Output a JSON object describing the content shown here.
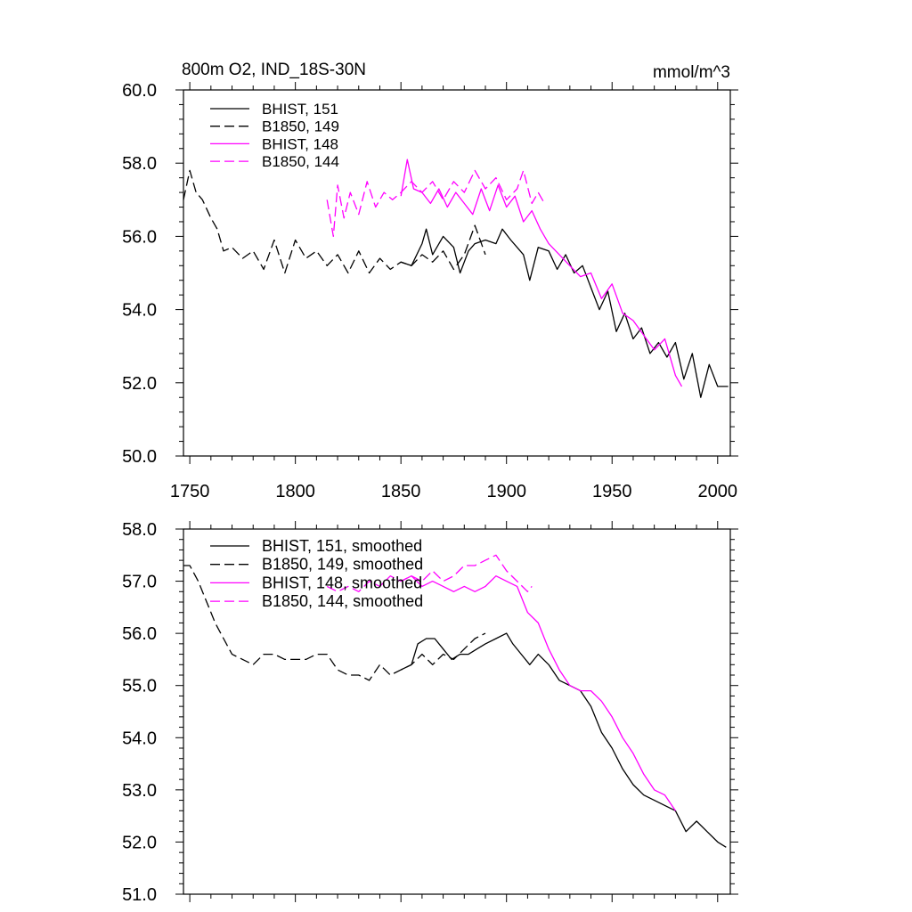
{
  "chart_data": [
    {
      "type": "line",
      "title": "800m O2, IND_18S-30N",
      "units": "mmol/m^3",
      "xlim": [
        1747,
        2006
      ],
      "ylim": [
        50,
        60
      ],
      "xticks": [
        "1750",
        "1800",
        "1850",
        "1900",
        "1950",
        "2000"
      ],
      "yticks": [
        "50.0",
        "52.0",
        "54.0",
        "56.0",
        "58.0",
        "60.0"
      ],
      "legend_position": "top-left",
      "series": [
        {
          "name": "BHIST, 151",
          "color": "#000000",
          "dash": "solid",
          "x": [
            1850,
            1855,
            1860,
            1862,
            1865,
            1870,
            1875,
            1878,
            1882,
            1885,
            1890,
            1895,
            1898,
            1902,
            1905,
            1908,
            1911,
            1915,
            1920,
            1924,
            1928,
            1932,
            1936,
            1940,
            1944,
            1948,
            1952,
            1956,
            1960,
            1964,
            1968,
            1972,
            1976,
            1980,
            1984,
            1988,
            1992,
            1996,
            2000,
            2005
          ],
          "y": [
            55.3,
            55.2,
            55.8,
            56.2,
            55.5,
            56.0,
            55.7,
            55.0,
            55.6,
            55.8,
            55.9,
            55.8,
            56.2,
            55.9,
            55.7,
            55.5,
            54.8,
            55.7,
            55.6,
            55.1,
            55.5,
            55.0,
            55.2,
            54.6,
            54.0,
            54.5,
            53.4,
            53.9,
            53.2,
            53.5,
            52.8,
            53.1,
            52.7,
            53.1,
            52.1,
            52.8,
            51.6,
            52.5,
            51.9,
            51.9
          ]
        },
        {
          "name": "B1850, 149",
          "color": "#000000",
          "dash": "dashed",
          "x": [
            1747,
            1750,
            1753,
            1756,
            1760,
            1763,
            1766,
            1770,
            1775,
            1780,
            1785,
            1790,
            1795,
            1800,
            1805,
            1810,
            1815,
            1820,
            1825,
            1830,
            1835,
            1840,
            1845,
            1850,
            1855,
            1860,
            1865,
            1870,
            1875,
            1880,
            1885,
            1890
          ],
          "y": [
            57.0,
            57.8,
            57.2,
            57.0,
            56.5,
            56.2,
            55.6,
            55.7,
            55.4,
            55.6,
            55.1,
            55.9,
            55.0,
            55.9,
            55.4,
            55.6,
            55.2,
            55.5,
            55.0,
            55.6,
            55.0,
            55.4,
            55.1,
            55.3,
            55.2,
            55.5,
            55.3,
            55.6,
            55.1,
            55.5,
            56.3,
            55.5
          ]
        },
        {
          "name": "BHIST, 148",
          "color": "#ff00ff",
          "dash": "solid",
          "x": [
            1850,
            1853,
            1856,
            1860,
            1864,
            1868,
            1872,
            1876,
            1880,
            1884,
            1888,
            1892,
            1896,
            1900,
            1904,
            1908,
            1912,
            1916,
            1920,
            1925,
            1930,
            1935,
            1940,
            1945,
            1950,
            1955,
            1960,
            1965,
            1970,
            1975,
            1980,
            1983
          ],
          "y": [
            57.1,
            58.1,
            57.3,
            57.2,
            56.9,
            57.3,
            56.8,
            57.2,
            56.9,
            56.6,
            57.3,
            56.7,
            57.4,
            56.8,
            57.1,
            56.4,
            56.7,
            56.2,
            55.8,
            55.5,
            55.2,
            54.9,
            55.0,
            54.3,
            54.7,
            53.9,
            53.7,
            53.3,
            52.9,
            53.2,
            52.2,
            51.9
          ]
        },
        {
          "name": "B1850, 144",
          "color": "#ff00ff",
          "dash": "dashed",
          "x": [
            1815,
            1818,
            1820,
            1823,
            1826,
            1830,
            1834,
            1838,
            1842,
            1846,
            1850,
            1855,
            1860,
            1865,
            1870,
            1875,
            1880,
            1885,
            1890,
            1895,
            1900,
            1905,
            1908,
            1912,
            1915,
            1918
          ],
          "y": [
            57.0,
            56.0,
            57.4,
            56.5,
            57.2,
            56.6,
            57.5,
            56.8,
            57.2,
            57.0,
            57.2,
            57.5,
            57.2,
            57.5,
            57.0,
            57.5,
            57.2,
            57.8,
            57.3,
            57.6,
            57.0,
            57.3,
            57.8,
            56.9,
            57.2,
            56.9
          ]
        }
      ]
    },
    {
      "type": "line",
      "xlim": [
        1747,
        2006
      ],
      "ylim": [
        51,
        58
      ],
      "xticks": [
        "1750",
        "1800",
        "1850",
        "1900",
        "1950",
        "2000"
      ],
      "yticks": [
        "51.0",
        "52.0",
        "53.0",
        "54.0",
        "55.0",
        "56.0",
        "57.0",
        "58.0"
      ],
      "legend_position": "top-left",
      "series": [
        {
          "name": "BHIST, 151, smoothed",
          "color": "#000000",
          "dash": "solid",
          "x": [
            1850,
            1855,
            1858,
            1862,
            1866,
            1870,
            1874,
            1878,
            1882,
            1886,
            1890,
            1895,
            1900,
            1903,
            1907,
            1911,
            1915,
            1920,
            1925,
            1930,
            1935,
            1940,
            1945,
            1950,
            1955,
            1960,
            1965,
            1970,
            1975,
            1980,
            1985,
            1990,
            1995,
            2000,
            2004
          ],
          "y": [
            55.3,
            55.4,
            55.8,
            55.9,
            55.9,
            55.7,
            55.5,
            55.6,
            55.6,
            55.7,
            55.8,
            55.9,
            56.0,
            55.8,
            55.6,
            55.4,
            55.6,
            55.4,
            55.1,
            55.0,
            54.9,
            54.6,
            54.1,
            53.8,
            53.4,
            53.1,
            52.9,
            52.8,
            52.7,
            52.6,
            52.2,
            52.4,
            52.2,
            52.0,
            51.9
          ]
        },
        {
          "name": "B1850, 149, smoothed",
          "color": "#000000",
          "dash": "dashed",
          "x": [
            1747,
            1750,
            1754,
            1758,
            1762,
            1766,
            1770,
            1775,
            1780,
            1785,
            1790,
            1795,
            1800,
            1805,
            1810,
            1815,
            1820,
            1825,
            1830,
            1835,
            1840,
            1845,
            1850,
            1855,
            1860,
            1865,
            1870,
            1875,
            1880,
            1885,
            1890
          ],
          "y": [
            57.3,
            57.3,
            57.0,
            56.6,
            56.2,
            55.9,
            55.6,
            55.5,
            55.4,
            55.6,
            55.6,
            55.5,
            55.5,
            55.5,
            55.6,
            55.6,
            55.3,
            55.2,
            55.2,
            55.1,
            55.4,
            55.2,
            55.3,
            55.4,
            55.6,
            55.4,
            55.6,
            55.5,
            55.7,
            55.9,
            56.0
          ]
        },
        {
          "name": "BHIST, 148, smoothed",
          "color": "#ff00ff",
          "dash": "solid",
          "x": [
            1850,
            1855,
            1860,
            1865,
            1870,
            1875,
            1880,
            1885,
            1890,
            1895,
            1900,
            1905,
            1910,
            1915,
            1920,
            1925,
            1930,
            1935,
            1940,
            1945,
            1950,
            1955,
            1960,
            1965,
            1970,
            1975,
            1980
          ],
          "y": [
            57.0,
            57.1,
            56.9,
            57.0,
            56.9,
            56.8,
            56.9,
            56.8,
            56.9,
            57.1,
            57.0,
            56.9,
            56.4,
            56.2,
            55.7,
            55.3,
            55.0,
            54.9,
            54.9,
            54.7,
            54.4,
            54.0,
            53.7,
            53.3,
            53.0,
            52.9,
            52.6
          ]
        },
        {
          "name": "B1850, 144, smoothed",
          "color": "#ff00ff",
          "dash": "dashed",
          "x": [
            1815,
            1820,
            1825,
            1830,
            1835,
            1840,
            1845,
            1850,
            1855,
            1860,
            1865,
            1870,
            1875,
            1880,
            1885,
            1890,
            1895,
            1900,
            1905,
            1910,
            1912
          ],
          "y": [
            56.9,
            56.8,
            56.9,
            56.8,
            57.0,
            56.9,
            57.1,
            57.0,
            57.1,
            57.0,
            57.2,
            57.0,
            57.1,
            57.3,
            57.3,
            57.4,
            57.5,
            57.2,
            57.0,
            56.8,
            56.9
          ]
        }
      ]
    }
  ]
}
